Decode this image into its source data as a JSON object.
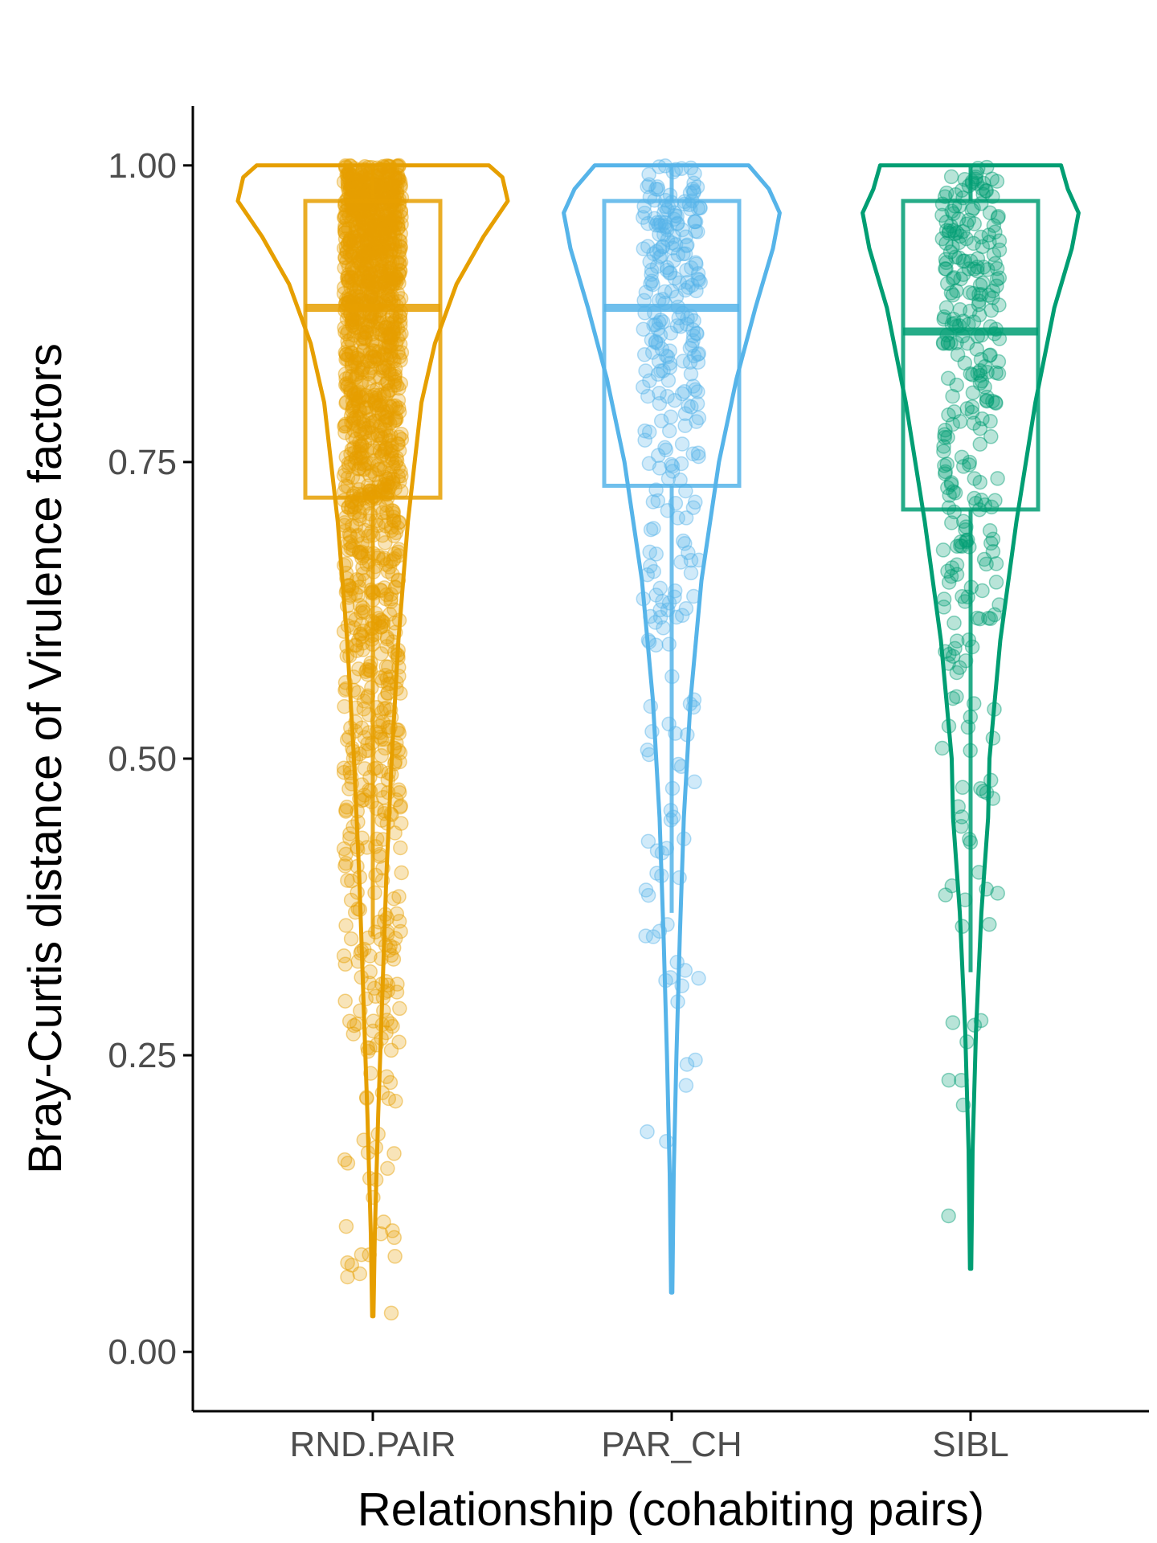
{
  "chart_data": {
    "type": "violin",
    "xlabel": "Relationship (cohabiting pairs)",
    "ylabel": "Bray-Curtis distance of Virulence factors",
    "ylim": [
      -0.05,
      1.05
    ],
    "y_ticks": [
      {
        "value": 0.0,
        "label": "0.00"
      },
      {
        "value": 0.25,
        "label": "0.25"
      },
      {
        "value": 0.5,
        "label": "0.50"
      },
      {
        "value": 0.75,
        "label": "0.75"
      },
      {
        "value": 1.0,
        "label": "1.00"
      }
    ],
    "grid": false,
    "legend": "none",
    "categories": [
      "RND.PAIR",
      "PAR_CH",
      "SIBL"
    ],
    "series": [
      {
        "category": "RND.PAIR",
        "color": "#E69F00",
        "point_count": 1500,
        "min": 0.03,
        "max": 1.0,
        "box": {
          "q1": 0.72,
          "median": 0.88,
          "q3": 0.97,
          "whisker_low": 0.35,
          "whisker_high": 1.0
        },
        "violin_profile": [
          [
            0.03,
            0.005
          ],
          [
            0.1,
            0.015
          ],
          [
            0.2,
            0.04
          ],
          [
            0.3,
            0.07
          ],
          [
            0.4,
            0.1
          ],
          [
            0.5,
            0.14
          ],
          [
            0.6,
            0.19
          ],
          [
            0.7,
            0.26
          ],
          [
            0.8,
            0.36
          ],
          [
            0.85,
            0.46
          ],
          [
            0.9,
            0.62
          ],
          [
            0.94,
            0.82
          ],
          [
            0.97,
            1.0
          ],
          [
            0.99,
            0.96
          ],
          [
            1.0,
            0.86
          ]
        ]
      },
      {
        "category": "PAR_CH",
        "color": "#56B4E9",
        "point_count": 300,
        "min": 0.05,
        "max": 1.0,
        "box": {
          "q1": 0.73,
          "median": 0.88,
          "q3": 0.97,
          "whisker_low": 0.37,
          "whisker_high": 1.0
        },
        "violin_profile": [
          [
            0.05,
            0.005
          ],
          [
            0.15,
            0.015
          ],
          [
            0.25,
            0.035
          ],
          [
            0.35,
            0.06
          ],
          [
            0.45,
            0.09
          ],
          [
            0.55,
            0.14
          ],
          [
            0.65,
            0.22
          ],
          [
            0.75,
            0.35
          ],
          [
            0.82,
            0.48
          ],
          [
            0.88,
            0.62
          ],
          [
            0.93,
            0.75
          ],
          [
            0.96,
            0.8
          ],
          [
            0.98,
            0.72
          ],
          [
            1.0,
            0.57
          ]
        ]
      },
      {
        "category": "SIBL",
        "color": "#009E73",
        "point_count": 300,
        "min": 0.07,
        "max": 1.0,
        "box": {
          "q1": 0.71,
          "median": 0.86,
          "q3": 0.97,
          "whisker_low": 0.32,
          "whisker_high": 1.0
        },
        "violin_profile": [
          [
            0.07,
            0.005
          ],
          [
            0.17,
            0.015
          ],
          [
            0.27,
            0.04
          ],
          [
            0.37,
            0.08
          ],
          [
            0.45,
            0.13
          ],
          [
            0.5,
            0.14
          ],
          [
            0.55,
            0.18
          ],
          [
            0.6,
            0.22
          ],
          [
            0.7,
            0.34
          ],
          [
            0.8,
            0.48
          ],
          [
            0.88,
            0.62
          ],
          [
            0.93,
            0.75
          ],
          [
            0.96,
            0.8
          ],
          [
            0.98,
            0.72
          ],
          [
            1.0,
            0.67
          ]
        ]
      }
    ]
  }
}
